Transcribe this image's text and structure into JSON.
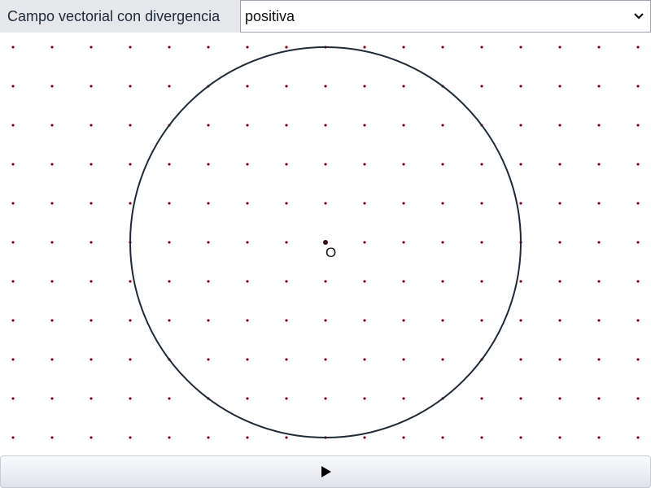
{
  "toolbar": {
    "label": "Campo vectorial con divergencia",
    "select": {
      "selected": "positiva"
    }
  },
  "canvas": {
    "origin_label": "O",
    "colors": {
      "grid_dot": "#7f0a1e",
      "circle_stroke": "#1f2a36",
      "origin_dot": "#3a0a12"
    },
    "icons": {
      "select": "chevron-down-icon",
      "play": "play-icon"
    }
  },
  "controls": {
    "play_button": "play"
  }
}
